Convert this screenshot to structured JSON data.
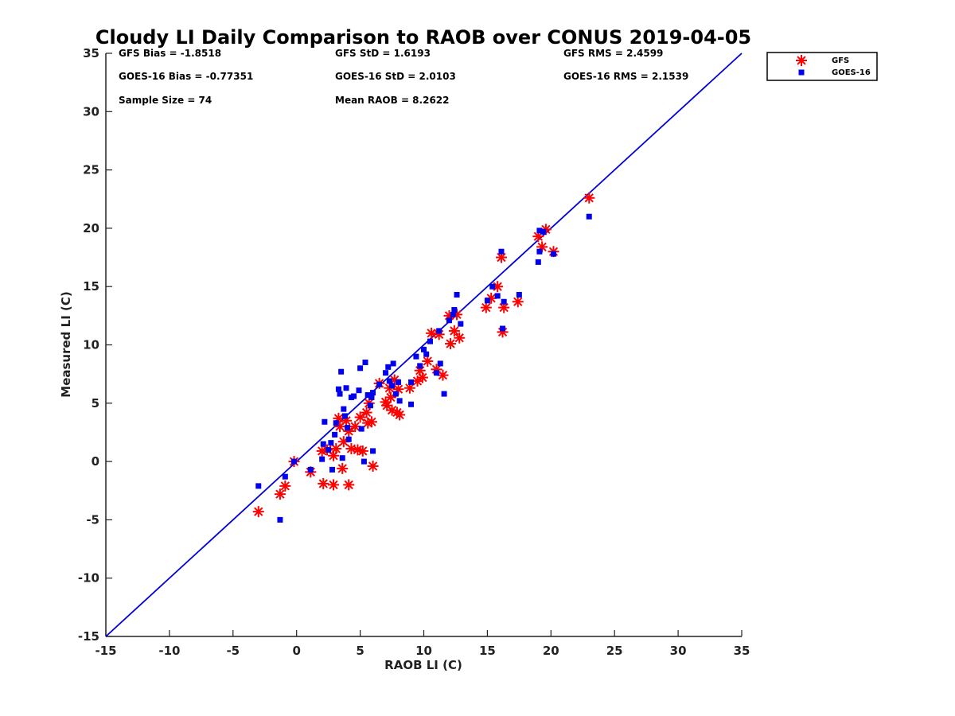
{
  "chart_data": {
    "type": "scatter",
    "title": "Cloudy LI Daily Comparison to RAOB over CONUS 2019-04-05",
    "xlabel": "RAOB LI (C)",
    "ylabel": "Measured LI (C)",
    "xlim": [
      -15,
      35
    ],
    "ylim": [
      -15,
      35
    ],
    "xticks": [
      "-15",
      "-10",
      "-5",
      "0",
      "5",
      "10",
      "15",
      "20",
      "25",
      "30",
      "35"
    ],
    "yticks": [
      "-15",
      "-10",
      "-5",
      "0",
      "5",
      "10",
      "15",
      "20",
      "25",
      "30",
      "35"
    ],
    "grid": false,
    "legend_position": "top-right",
    "reference_line": {
      "x": [
        -15,
        35
      ],
      "y": [
        -15,
        35
      ],
      "color": "#0000dd"
    },
    "stats": [
      [
        "GFS Bias = -1.8518",
        "GFS StD = 1.6193",
        "GFS RMS = 2.4599"
      ],
      [
        "GOES-16 Bias = -0.77351",
        "GOES-16 StD = 2.0103",
        "GOES-16 RMS = 2.1539"
      ],
      [
        "Sample Size = 74",
        "Mean RAOB = 8.2622",
        ""
      ]
    ],
    "series": [
      {
        "name": "GFS",
        "marker": "asterisk",
        "color": "#ff0000",
        "points": [
          [
            -3.0,
            -4.3
          ],
          [
            -1.3,
            -2.8
          ],
          [
            -0.9,
            -2.1
          ],
          [
            -0.2,
            0.0
          ],
          [
            1.1,
            -0.9
          ],
          [
            2.0,
            0.9
          ],
          [
            2.1,
            -1.9
          ],
          [
            2.4,
            1.0
          ],
          [
            2.9,
            -2.0
          ],
          [
            2.9,
            0.5
          ],
          [
            3.1,
            1.1
          ],
          [
            3.3,
            3.7
          ],
          [
            3.4,
            3.0
          ],
          [
            3.6,
            -0.6
          ],
          [
            3.7,
            1.7
          ],
          [
            3.9,
            3.5
          ],
          [
            4.1,
            2.6
          ],
          [
            4.1,
            -2.0
          ],
          [
            4.3,
            1.1
          ],
          [
            4.6,
            3.0
          ],
          [
            4.8,
            1.0
          ],
          [
            5.0,
            3.8
          ],
          [
            5.2,
            0.9
          ],
          [
            5.5,
            4.2
          ],
          [
            5.6,
            3.3
          ],
          [
            5.7,
            5.0
          ],
          [
            5.9,
            3.4
          ],
          [
            6.0,
            -0.4
          ],
          [
            6.5,
            6.7
          ],
          [
            7.0,
            5.1
          ],
          [
            7.1,
            4.8
          ],
          [
            7.3,
            6.3
          ],
          [
            7.4,
            5.5
          ],
          [
            7.5,
            4.4
          ],
          [
            7.7,
            7.0
          ],
          [
            7.9,
            4.2
          ],
          [
            8.0,
            6.2
          ],
          [
            8.1,
            4.0
          ],
          [
            8.9,
            6.3
          ],
          [
            9.5,
            6.9
          ],
          [
            9.7,
            7.8
          ],
          [
            9.9,
            7.2
          ],
          [
            10.3,
            8.6
          ],
          [
            10.6,
            11.0
          ],
          [
            11.0,
            7.9
          ],
          [
            11.2,
            10.9
          ],
          [
            11.5,
            7.4
          ],
          [
            12.0,
            12.5
          ],
          [
            12.1,
            10.1
          ],
          [
            12.4,
            11.2
          ],
          [
            12.6,
            12.6
          ],
          [
            12.8,
            10.6
          ],
          [
            14.9,
            13.2
          ],
          [
            15.3,
            14.0
          ],
          [
            15.8,
            15.0
          ],
          [
            16.1,
            17.5
          ],
          [
            16.2,
            11.1
          ],
          [
            16.3,
            13.2
          ],
          [
            17.4,
            13.7
          ],
          [
            19.0,
            19.3
          ],
          [
            19.3,
            18.4
          ],
          [
            19.6,
            19.9
          ],
          [
            20.2,
            18.0
          ],
          [
            23.0,
            22.6
          ]
        ]
      },
      {
        "name": "GOES-16",
        "marker": "square",
        "color": "#0000ee",
        "points": [
          [
            -3.0,
            -2.1
          ],
          [
            -1.3,
            -5.0
          ],
          [
            -0.9,
            -1.3
          ],
          [
            -0.2,
            0.0
          ],
          [
            1.1,
            -0.7
          ],
          [
            2.0,
            0.2
          ],
          [
            2.1,
            1.5
          ],
          [
            2.2,
            3.4
          ],
          [
            2.5,
            1.0
          ],
          [
            2.7,
            1.6
          ],
          [
            2.8,
            -0.7
          ],
          [
            3.0,
            2.3
          ],
          [
            3.1,
            3.3
          ],
          [
            3.3,
            6.2
          ],
          [
            3.4,
            5.8
          ],
          [
            3.5,
            7.7
          ],
          [
            3.6,
            0.3
          ],
          [
            3.7,
            4.5
          ],
          [
            3.8,
            3.9
          ],
          [
            3.9,
            6.3
          ],
          [
            4.0,
            2.9
          ],
          [
            4.1,
            1.9
          ],
          [
            4.3,
            5.5
          ],
          [
            4.5,
            5.6
          ],
          [
            4.9,
            6.1
          ],
          [
            5.0,
            8.0
          ],
          [
            5.1,
            2.8
          ],
          [
            5.3,
            0.0
          ],
          [
            5.4,
            8.5
          ],
          [
            5.6,
            5.7
          ],
          [
            5.8,
            4.8
          ],
          [
            5.9,
            5.5
          ],
          [
            6.0,
            0.9
          ],
          [
            6.0,
            5.9
          ],
          [
            6.5,
            6.6
          ],
          [
            7.0,
            7.6
          ],
          [
            7.2,
            8.1
          ],
          [
            7.3,
            6.9
          ],
          [
            7.5,
            6.5
          ],
          [
            7.6,
            8.4
          ],
          [
            7.8,
            5.8
          ],
          [
            8.0,
            6.8
          ],
          [
            8.1,
            5.2
          ],
          [
            9.0,
            4.9
          ],
          [
            9.0,
            6.8
          ],
          [
            9.4,
            9.0
          ],
          [
            9.7,
            8.2
          ],
          [
            10.0,
            9.6
          ],
          [
            10.2,
            9.2
          ],
          [
            10.5,
            10.3
          ],
          [
            11.0,
            7.6
          ],
          [
            11.2,
            11.2
          ],
          [
            11.3,
            8.4
          ],
          [
            11.6,
            5.8
          ],
          [
            12.0,
            12.1
          ],
          [
            12.3,
            12.6
          ],
          [
            12.4,
            13.0
          ],
          [
            12.6,
            14.3
          ],
          [
            12.9,
            11.8
          ],
          [
            15.0,
            13.8
          ],
          [
            15.4,
            15.0
          ],
          [
            15.8,
            14.2
          ],
          [
            16.1,
            18.0
          ],
          [
            16.2,
            11.4
          ],
          [
            16.3,
            13.7
          ],
          [
            17.5,
            14.3
          ],
          [
            19.0,
            17.1
          ],
          [
            19.1,
            19.8
          ],
          [
            19.1,
            18.0
          ],
          [
            19.4,
            19.7
          ],
          [
            20.2,
            17.8
          ],
          [
            23.0,
            21.0
          ]
        ]
      }
    ]
  }
}
